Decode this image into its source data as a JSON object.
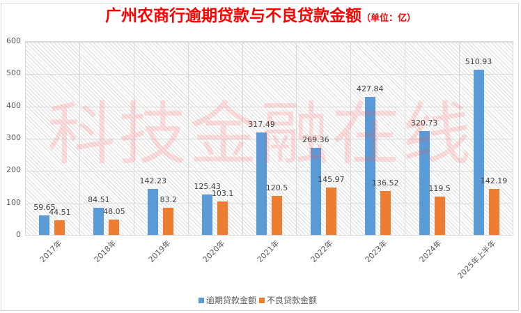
{
  "chart_data": {
    "type": "bar",
    "title": "广州农商行逾期贷款与不良贷款金额",
    "subtitle": "（单位：亿）",
    "xlabel": "",
    "ylabel": "",
    "ylim": [
      0,
      600
    ],
    "yticks": [
      0,
      100,
      200,
      300,
      400,
      500,
      600
    ],
    "grid": true,
    "legend_position": "bottom",
    "categories": [
      "2017年",
      "2018年",
      "2019年",
      "2020年",
      "2021年",
      "2022年",
      "2023年",
      "2024年",
      "2025年上半年"
    ],
    "series": [
      {
        "name": "逾期贷款金额",
        "color": "#5b9bd5",
        "values": [
          59.65,
          84.51,
          142.23,
          125.43,
          317.49,
          269.36,
          427.84,
          320.73,
          510.93
        ]
      },
      {
        "name": "不良贷款金额",
        "color": "#ed7d31",
        "values": [
          44.51,
          48.05,
          83.2,
          103.1,
          120.5,
          145.97,
          136.52,
          119.5,
          142.19
        ]
      }
    ],
    "data_labels": {
      "s0": [
        "59.65",
        "84.51",
        "142.23",
        "125.43",
        "317.49",
        "269.36",
        "427.84",
        "320.73",
        "510.93"
      ],
      "s1": [
        "44.51",
        "48.05",
        "83.2",
        "103.1",
        "120.5",
        "145.97",
        "136.52",
        "119.5",
        "142.19"
      ]
    },
    "watermark": "科技金融在线"
  },
  "header": {
    "title": "广州农商行逾期贷款与不良贷款金额",
    "unit": "（单位：亿）"
  },
  "legend": {
    "items": [
      {
        "label": "逾期贷款金额",
        "color": "#5b9bd5"
      },
      {
        "label": "不良贷款金额",
        "color": "#ed7d31"
      }
    ]
  }
}
